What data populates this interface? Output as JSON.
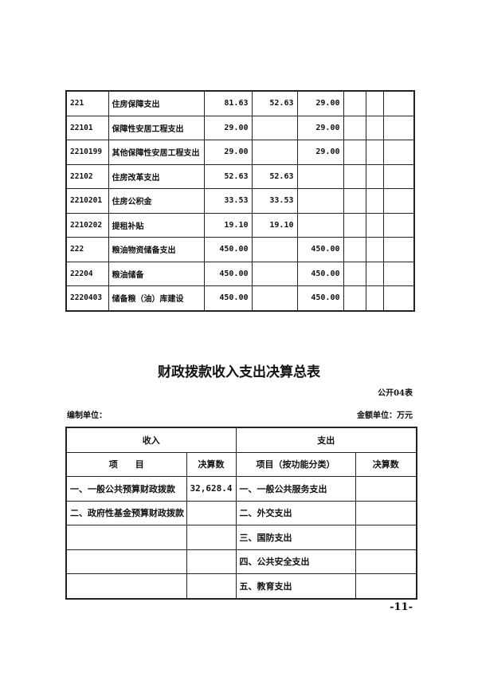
{
  "top_table": {
    "rows": [
      [
        "221",
        "住房保障支出",
        "81.63",
        "52.63",
        "29.00"
      ],
      [
        "22101",
        "保障性安居工程支出",
        "29.00",
        "",
        "29.00"
      ],
      [
        "2210199",
        "其他保障性安居工程支出",
        "29.00",
        "",
        "29.00"
      ],
      [
        "22102",
        "住房改革支出",
        "52.63",
        "52.63",
        ""
      ],
      [
        "2210201",
        "住房公积金",
        "33.53",
        "33.53",
        ""
      ],
      [
        "2210202",
        "提租补贴",
        "19.10",
        "19.10",
        ""
      ],
      [
        "222",
        "粮油物资储备支出",
        "450.00",
        "",
        "450.00"
      ],
      [
        "22204",
        "粮油储备",
        "450.00",
        "",
        "450.00"
      ],
      [
        "2220403",
        "储备粮（油）库建设",
        "450.00",
        "",
        "450.00"
      ]
    ]
  },
  "title": "财政拨款收入支出决算总表",
  "table_id": "公开04表",
  "compiler_label": "编制单位：",
  "unit_label": "金额单位：万元",
  "summary_table": {
    "income_header": "收入",
    "expense_header": "支出",
    "col_item": "项　　目",
    "col_amount": "决算数",
    "col_item_func": "项目（按功能分类）",
    "col_amount2": "决算数",
    "rows": [
      [
        "一、一般公共预算财政拨款",
        "32,628.4",
        "一、一般公共服务支出",
        ""
      ],
      [
        "二、政府性基金预算财政拨款",
        "",
        "二、外交支出",
        ""
      ],
      [
        "",
        "",
        "三、国防支出",
        ""
      ],
      [
        "",
        "",
        "四、公共安全支出",
        ""
      ],
      [
        "",
        "",
        "五、教育支出",
        ""
      ]
    ]
  },
  "page_number": "-11-"
}
